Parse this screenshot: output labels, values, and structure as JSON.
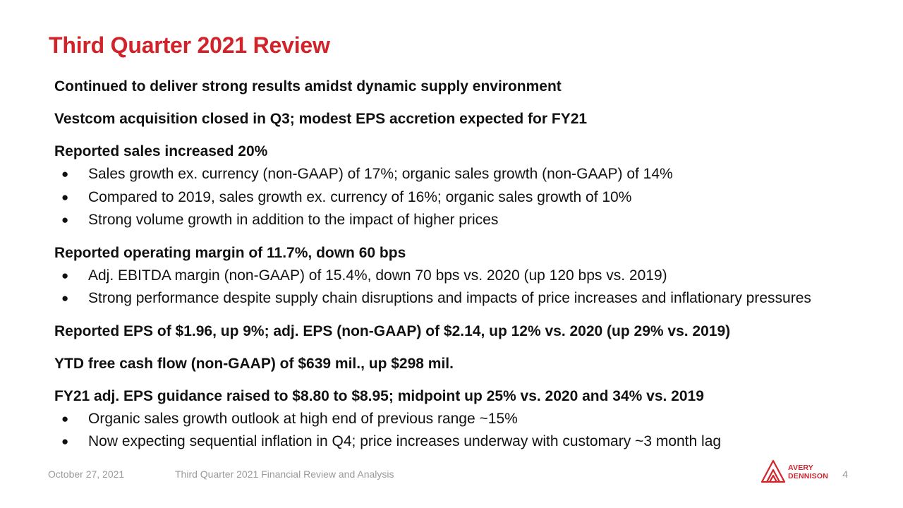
{
  "slide": {
    "title": "Third Quarter 2021 Review",
    "sections": [
      {
        "heading": "Continued to deliver strong results amidst dynamic supply environment",
        "bullets": []
      },
      {
        "heading": "Vestcom acquisition closed in Q3; modest EPS accretion expected for FY21",
        "bullets": []
      },
      {
        "heading": "Reported sales increased 20%",
        "bullets": [
          "Sales growth ex. currency (non-GAAP) of 17%; organic sales growth (non-GAAP) of 14%",
          "Compared to 2019, sales growth ex. currency of 16%; organic sales growth of 10%",
          "Strong volume growth in addition to the impact of higher prices"
        ]
      },
      {
        "heading": "Reported operating margin of 11.7%, down 60 bps",
        "bullets": [
          "Adj. EBITDA margin (non-GAAP) of 15.4%, down 70 bps vs. 2020 (up 120 bps vs. 2019)",
          "Strong performance despite supply chain disruptions and impacts of price increases and inflationary pressures"
        ]
      },
      {
        "heading": "Reported EPS of $1.96, up 9%; adj. EPS (non-GAAP) of $2.14, up 12% vs. 2020 (up 29% vs. 2019)",
        "bullets": []
      },
      {
        "heading": "YTD free cash flow (non-GAAP) of $639 mil., up $298 mil.",
        "bullets": []
      },
      {
        "heading": "FY21 adj. EPS guidance raised to $8.80 to $8.95; midpoint up 25% vs. 2020 and 34% vs. 2019",
        "bullets": [
          "Organic sales growth outlook at high end of previous range ~15%",
          "Now expecting sequential inflation in Q4; price increases underway with customary ~3 month lag"
        ]
      }
    ]
  },
  "footer": {
    "date": "October 27, 2021",
    "doc_title": "Third Quarter 2021 Financial Review and Analysis",
    "page": "4",
    "logo_line1": "AVERY",
    "logo_line2": "DENNISON"
  },
  "colors": {
    "accent": "#d2232a",
    "footer_text": "#9a9a9a"
  },
  "icons": {
    "bullet": "●",
    "logo": "avery-dennison-logo"
  }
}
